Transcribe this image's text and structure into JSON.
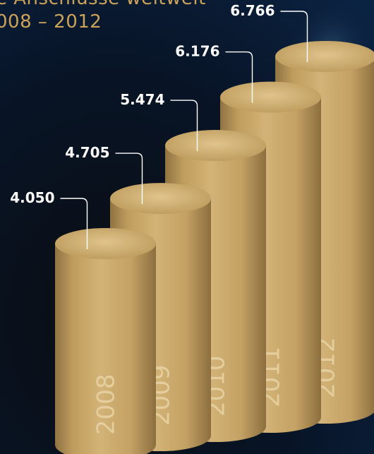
{
  "header": {
    "title": "e Anschlüsse weltweit",
    "subtitle": "008 – 2012"
  },
  "chart_data": {
    "type": "bar",
    "categories": [
      "2008",
      "2009",
      "2010",
      "2011",
      "2012"
    ],
    "values": [
      4050,
      4705,
      5474,
      6176,
      6766
    ],
    "value_labels": [
      "4.050",
      "4.705",
      "5.474",
      "6.176",
      "6.766"
    ],
    "title": "",
    "xlabel": "",
    "ylabel": "",
    "colors": {
      "cylinder": "#c9a769",
      "cylinder_top": "#d8bb80",
      "text": "#ffffff",
      "accent": "#caa25a"
    }
  }
}
